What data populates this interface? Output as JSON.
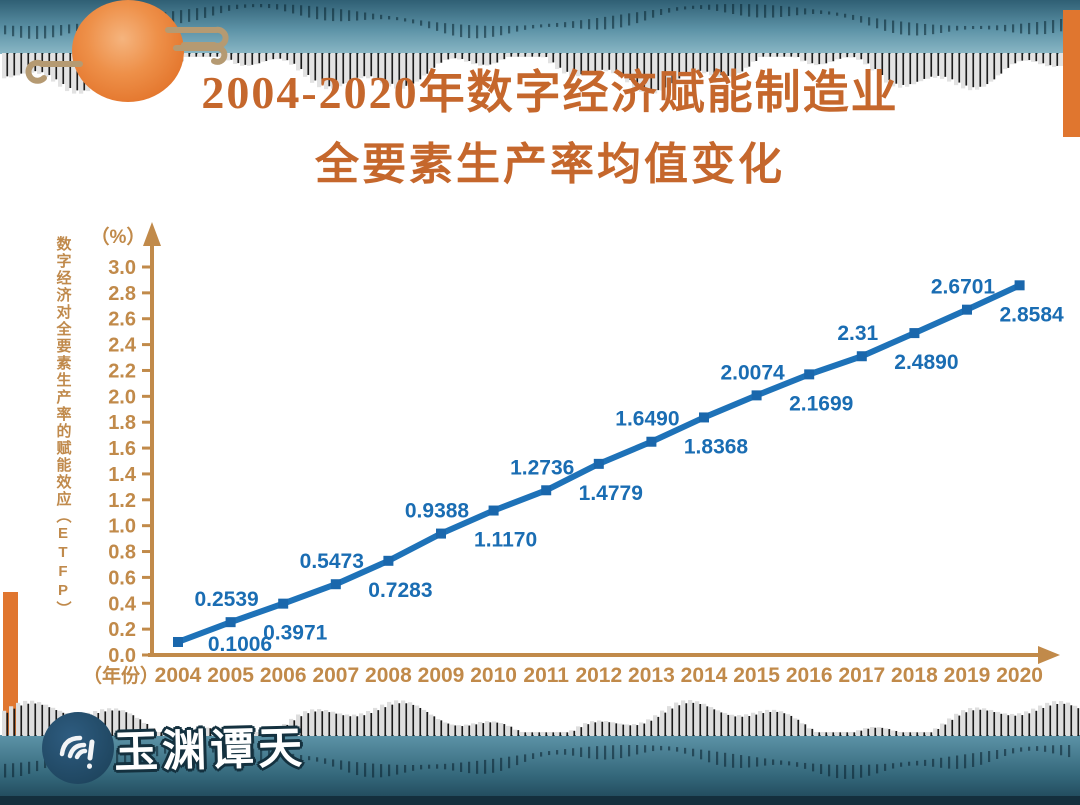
{
  "header": {
    "title_line1": "2004-2020年数字经济赋能制造业",
    "title_line2": "全要素生产率均值变化",
    "title_color": "#c5672c"
  },
  "chart_data": {
    "type": "line",
    "title": "2004-2020年数字经济赋能制造业全要素生产率均值变化",
    "x": [
      2004,
      2005,
      2006,
      2007,
      2008,
      2009,
      2010,
      2011,
      2012,
      2013,
      2014,
      2015,
      2016,
      2017,
      2018,
      2019,
      2020
    ],
    "values": [
      0.1006,
      0.2539,
      0.3971,
      0.5473,
      0.7283,
      0.9388,
      1.117,
      1.2736,
      1.4779,
      1.649,
      1.8368,
      2.0074,
      2.1699,
      2.31,
      2.489,
      2.6701,
      2.8584
    ],
    "point_labels": [
      "0.1006",
      "0.2539",
      "0.3971",
      "0.5473",
      "0.7283",
      "0.9388",
      "1.1170",
      "1.2736",
      "1.4779",
      "1.6490",
      "1.8368",
      "2.0074",
      "2.1699",
      "2.31",
      "2.4890",
      "2.6701",
      "2.8584"
    ],
    "y_axis": {
      "unit": "（%）",
      "title": "数字经济对全要素生产率的赋能效应（ETFP）",
      "min": 0.0,
      "max": 3.0,
      "step": 0.2,
      "ticks": [
        "0.0",
        "0.2",
        "0.4",
        "0.6",
        "0.8",
        "1.0",
        "1.2",
        "1.4",
        "1.6",
        "1.8",
        "2.0",
        "2.2",
        "2.4",
        "2.6",
        "2.8",
        "3.0"
      ]
    },
    "x_axis": {
      "unit": "（年份）"
    },
    "grid": false,
    "legend": "none",
    "colors": {
      "line": "#1e72b8",
      "marker": "#1a67ac",
      "labels": "#1a6db3",
      "axis": "#c18a4a"
    }
  },
  "footer": {
    "logo_text": "玉渊谭天"
  }
}
